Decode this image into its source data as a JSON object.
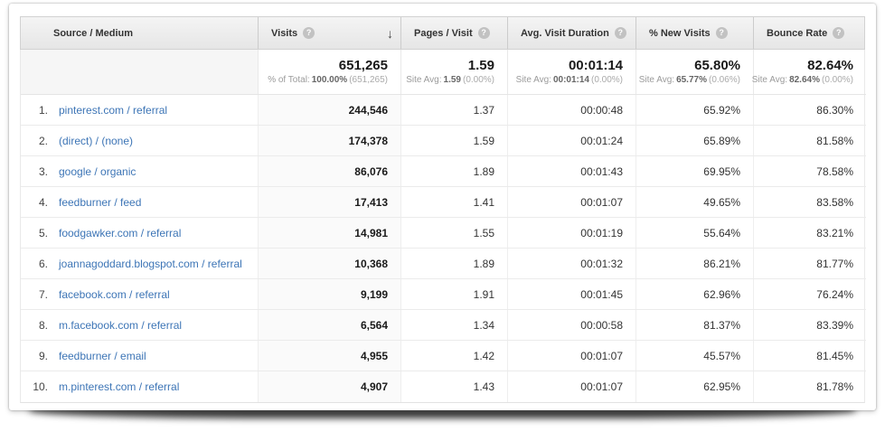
{
  "icons": {
    "help": "?",
    "sort_desc": "↓"
  },
  "table": {
    "columns": {
      "source": {
        "label": "Source / Medium"
      },
      "visits": {
        "label": "Visits"
      },
      "pages": {
        "label": "Pages / Visit"
      },
      "duration": {
        "label": "Avg. Visit Duration"
      },
      "new_visits": {
        "label": "% New Visits"
      },
      "bounce": {
        "label": "Bounce Rate"
      }
    },
    "summary": {
      "visits": {
        "main": "651,265",
        "prefix": "% of Total:",
        "value": "100.00%",
        "paren": "(651,265)"
      },
      "pages": {
        "main": "1.59",
        "prefix": "Site Avg:",
        "value": "1.59",
        "paren": "(0.00%)"
      },
      "duration": {
        "main": "00:01:14",
        "prefix": "Site Avg:",
        "value": "00:01:14",
        "paren": "(0.00%)"
      },
      "new_visits": {
        "main": "65.80%",
        "prefix": "Site Avg:",
        "value": "65.77%",
        "paren": "(0.06%)"
      },
      "bounce": {
        "main": "82.64%",
        "prefix": "Site Avg:",
        "value": "82.64%",
        "paren": "(0.00%)"
      }
    },
    "rows": [
      {
        "rank": "1.",
        "source": "pinterest.com / referral",
        "visits": "244,546",
        "pages": "1.37",
        "duration": "00:00:48",
        "new_visits": "65.92%",
        "bounce": "86.30%"
      },
      {
        "rank": "2.",
        "source": "(direct) / (none)",
        "visits": "174,378",
        "pages": "1.59",
        "duration": "00:01:24",
        "new_visits": "65.89%",
        "bounce": "81.58%"
      },
      {
        "rank": "3.",
        "source": "google / organic",
        "visits": "86,076",
        "pages": "1.89",
        "duration": "00:01:43",
        "new_visits": "69.95%",
        "bounce": "78.58%"
      },
      {
        "rank": "4.",
        "source": "feedburner / feed",
        "visits": "17,413",
        "pages": "1.41",
        "duration": "00:01:07",
        "new_visits": "49.65%",
        "bounce": "83.58%"
      },
      {
        "rank": "5.",
        "source": "foodgawker.com / referral",
        "visits": "14,981",
        "pages": "1.55",
        "duration": "00:01:19",
        "new_visits": "55.64%",
        "bounce": "83.21%"
      },
      {
        "rank": "6.",
        "source": "joannagoddard.blogspot.com / referral",
        "visits": "10,368",
        "pages": "1.89",
        "duration": "00:01:32",
        "new_visits": "86.21%",
        "bounce": "81.77%"
      },
      {
        "rank": "7.",
        "source": "facebook.com / referral",
        "visits": "9,199",
        "pages": "1.91",
        "duration": "00:01:45",
        "new_visits": "62.96%",
        "bounce": "76.24%"
      },
      {
        "rank": "8.",
        "source": "m.facebook.com / referral",
        "visits": "6,564",
        "pages": "1.34",
        "duration": "00:00:58",
        "new_visits": "81.37%",
        "bounce": "83.39%"
      },
      {
        "rank": "9.",
        "source": "feedburner / email",
        "visits": "4,955",
        "pages": "1.42",
        "duration": "00:01:07",
        "new_visits": "45.57%",
        "bounce": "81.45%"
      },
      {
        "rank": "10.",
        "source": "m.pinterest.com / referral",
        "visits": "4,907",
        "pages": "1.43",
        "duration": "00:01:07",
        "new_visits": "62.95%",
        "bounce": "81.78%"
      }
    ]
  }
}
